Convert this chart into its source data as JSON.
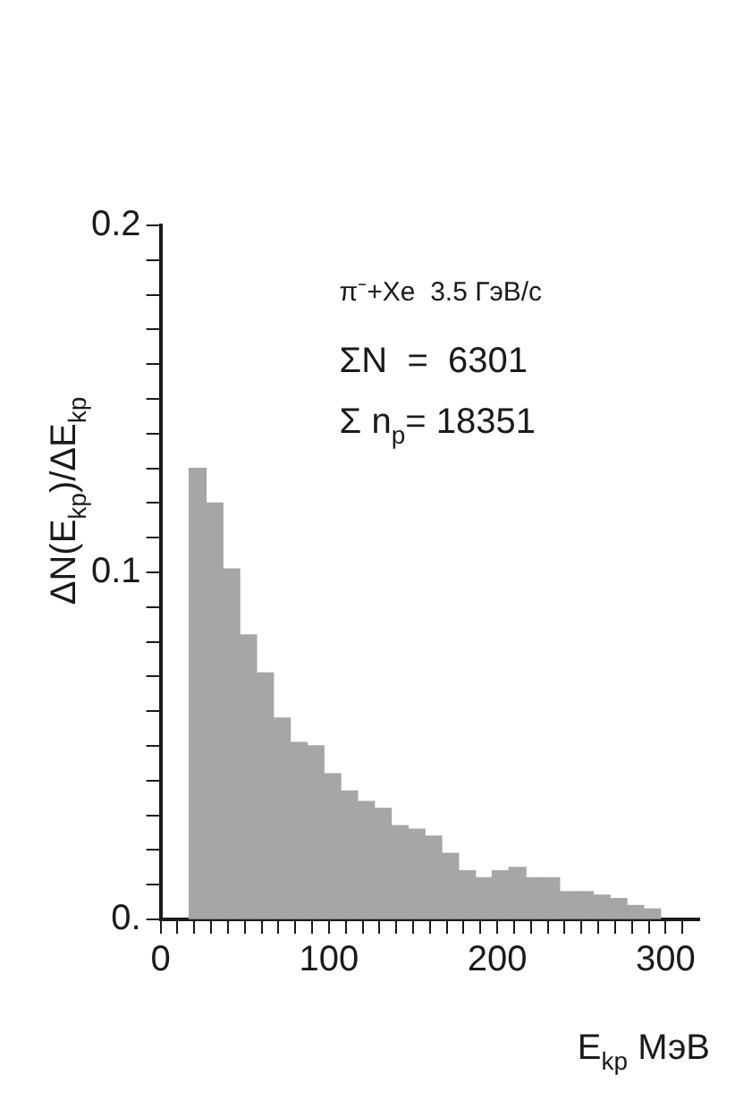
{
  "chart_data": {
    "type": "histogram",
    "xlabel": "E$_{kp}$ МэВ",
    "ylabel": "ΔN(E$_{kp}$)/ΔE$_{kp}$",
    "annotations": [
      "π⁻+Xe  3.5 ГэВ/с",
      "ΣN  =  6301",
      "Σ n$_{p}$= 18351"
    ],
    "bins": [
      17,
      27,
      37,
      47,
      57,
      67,
      77,
      87,
      97,
      107,
      117,
      127,
      137,
      147,
      157,
      167,
      177,
      187,
      197,
      207,
      217,
      227,
      237,
      247,
      257,
      267,
      277,
      287,
      297
    ],
    "values": [
      0.13,
      0.12,
      0.101,
      0.082,
      0.071,
      0.058,
      0.051,
      0.05,
      0.042,
      0.037,
      0.034,
      0.032,
      0.027,
      0.026,
      0.024,
      0.019,
      0.014,
      0.012,
      0.014,
      0.015,
      0.012,
      0.012,
      0.008,
      0.008,
      0.007,
      0.006,
      0.004,
      0.003
    ],
    "color": "#a6a6a6",
    "xlim": [
      0,
      320
    ],
    "xticks": [
      0,
      {
        "value": 10,
        "label": null
      },
      {
        "value": 20,
        "label": null
      },
      {
        "value": 30,
        "label": null
      },
      {
        "value": 40,
        "label": null
      },
      {
        "value": 50,
        "label": null
      },
      {
        "value": 60,
        "label": null
      },
      {
        "value": 70,
        "label": null
      },
      {
        "value": 80,
        "label": null
      },
      {
        "value": 90,
        "label": null
      },
      100,
      {
        "value": 110,
        "label": null
      },
      {
        "value": 120,
        "label": null
      },
      {
        "value": 130,
        "label": null
      },
      {
        "value": 140,
        "label": null
      },
      {
        "value": 150,
        "label": null
      },
      {
        "value": 160,
        "label": null
      },
      {
        "value": 170,
        "label": null
      },
      {
        "value": 180,
        "label": null
      },
      {
        "value": 190,
        "label": null
      },
      200,
      {
        "value": 210,
        "label": null
      },
      {
        "value": 220,
        "label": null
      },
      {
        "value": 230,
        "label": null
      },
      {
        "value": 240,
        "label": null
      },
      {
        "value": 250,
        "label": null
      },
      {
        "value": 260,
        "label": null
      },
      {
        "value": 270,
        "label": null
      },
      {
        "value": 280,
        "label": null
      },
      {
        "value": 290,
        "label": null
      },
      300,
      {
        "value": 310,
        "label": null
      }
    ],
    "ylim": [
      0,
      0.2
    ],
    "yticks": [
      {
        "value": 0,
        "label": "0."
      },
      {
        "value": 0.01,
        "label": null
      },
      {
        "value": 0.02,
        "label": null
      },
      {
        "value": 0.03,
        "label": null
      },
      {
        "value": 0.04,
        "label": null
      },
      {
        "value": 0.05,
        "label": null
      },
      {
        "value": 0.06,
        "label": null
      },
      {
        "value": 0.07,
        "label": null
      },
      {
        "value": 0.08,
        "label": null
      },
      {
        "value": 0.09,
        "label": null
      },
      {
        "value": 0.1,
        "label": "0.1"
      },
      {
        "value": 0.11,
        "label": null
      },
      {
        "value": 0.12,
        "label": null
      },
      {
        "value": 0.13,
        "label": null
      },
      {
        "value": 0.14,
        "label": null
      },
      {
        "value": 0.15,
        "label": null
      },
      {
        "value": 0.16,
        "label": null
      },
      {
        "value": 0.17,
        "label": null
      },
      {
        "value": 0.18,
        "label": null
      },
      {
        "value": 0.19,
        "label": null
      },
      {
        "value": 0.2,
        "label": "0.2"
      }
    ],
    "grid": false,
    "legend": false
  }
}
